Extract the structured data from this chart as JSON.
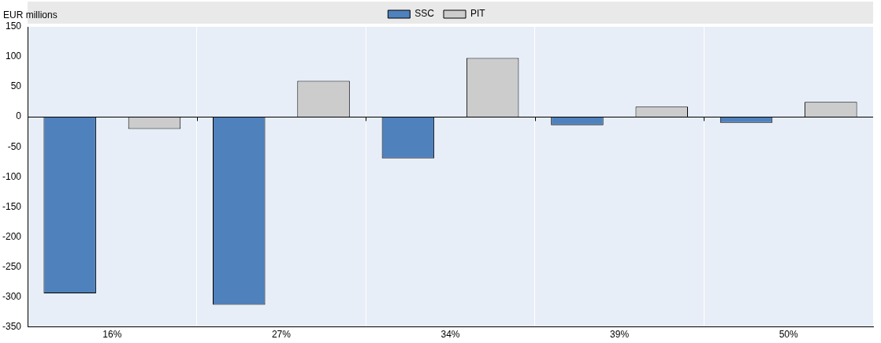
{
  "chart_data": {
    "type": "bar",
    "ylabel": "EUR millions",
    "categories": [
      "16%",
      "27%",
      "34%",
      "39%",
      "50%"
    ],
    "series": [
      {
        "name": "SSC",
        "color": "#4f81bd",
        "values": [
          -294,
          -313,
          -69,
          -14,
          -10
        ]
      },
      {
        "name": "PIT",
        "color": "#cccccc",
        "values": [
          -20,
          60,
          98,
          17,
          25
        ]
      }
    ],
    "ylim": [
      -350,
      150
    ],
    "yticks": [
      -350,
      -300,
      -250,
      -200,
      -150,
      -100,
      -50,
      0,
      50,
      100,
      150
    ],
    "grid": "x",
    "legend": "top"
  }
}
